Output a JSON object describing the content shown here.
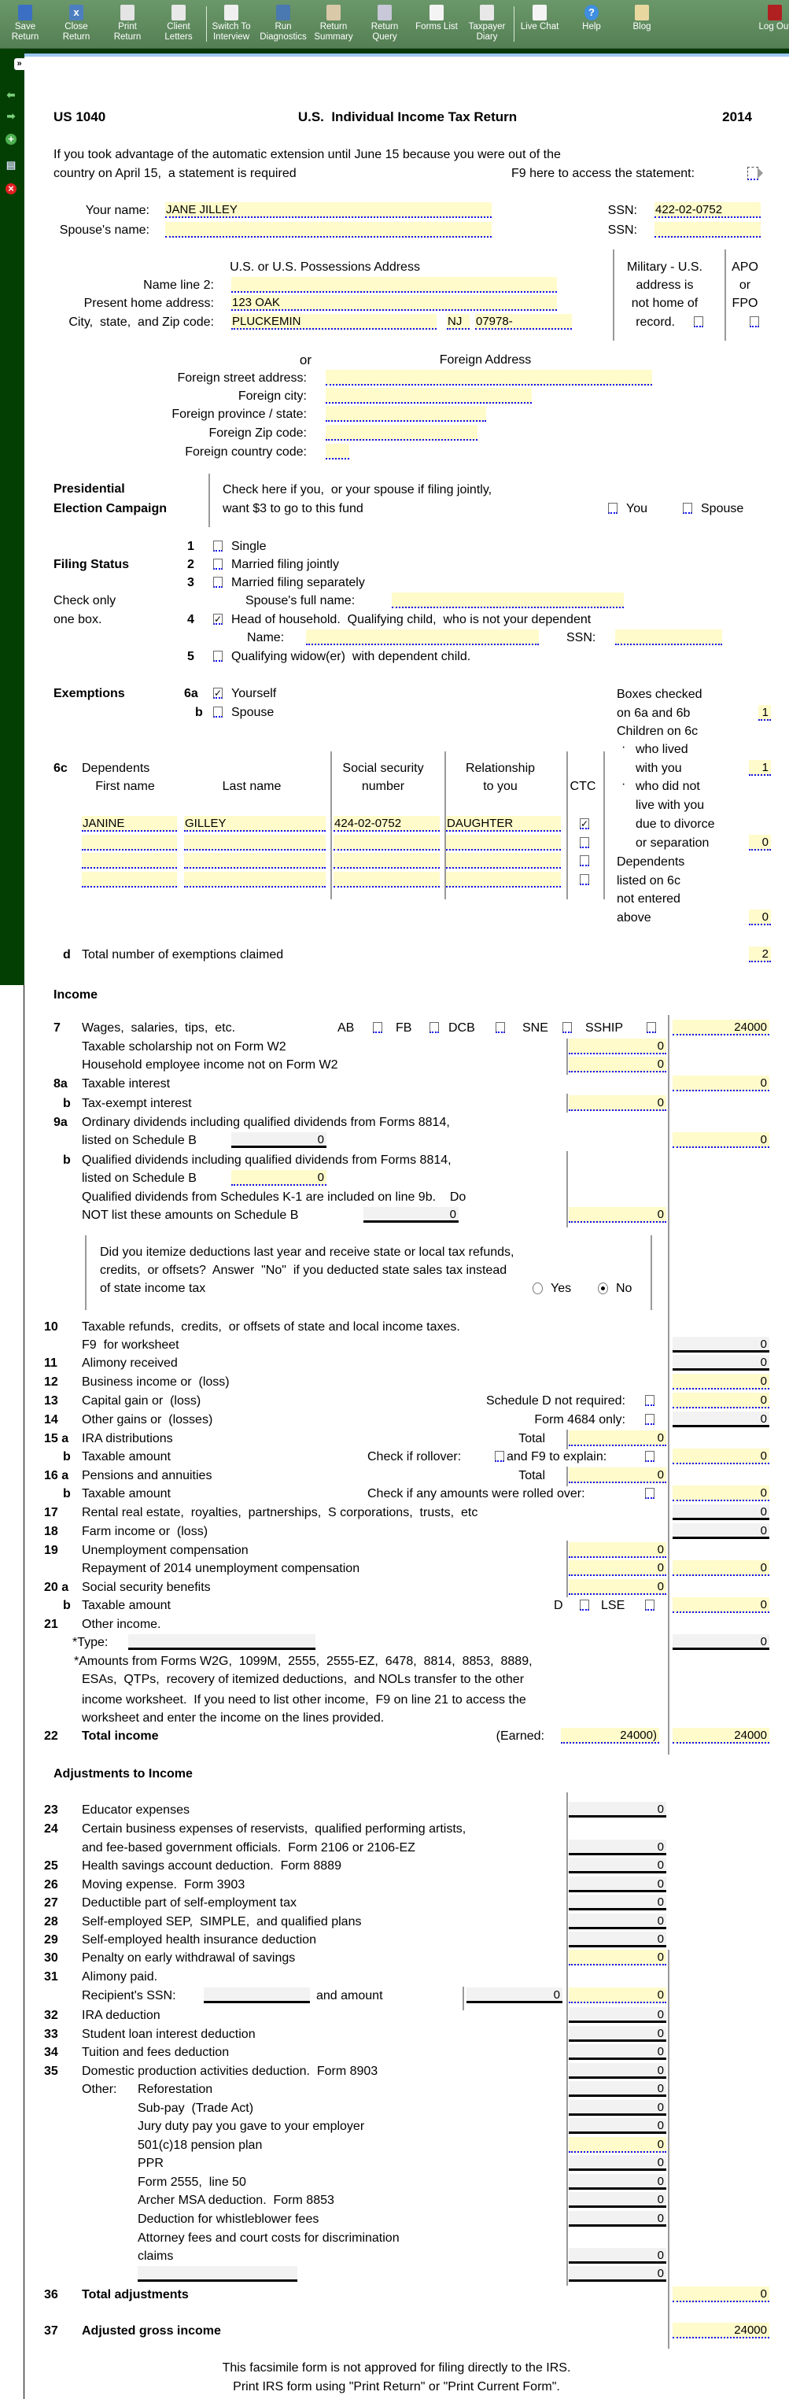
{
  "toolbar": {
    "items": [
      {
        "l1": "Save",
        "l2": "Return",
        "icon": "save-icon",
        "color": "#3a6fc4"
      },
      {
        "l1": "Close",
        "l2": "Return",
        "icon": "close-return-icon",
        "color": "#4d7fc0"
      },
      {
        "l1": "Print",
        "l2": "Return",
        "icon": "printer-icon",
        "color": "#e4e4e4"
      },
      {
        "l1": "Client",
        "l2": "Letters",
        "icon": "envelope-icon",
        "color": "#e8e8e8"
      },
      {
        "l1": "Switch To",
        "l2": "Interview",
        "icon": "switch-icon",
        "color": "#f0f0f0"
      },
      {
        "l1": "Run",
        "l2": "Diagnostics",
        "icon": "diagnostics-icon",
        "color": "#4a78b0"
      },
      {
        "l1": "Return",
        "l2": "Summary",
        "icon": "clipboard-icon",
        "color": "#d9c9a8"
      },
      {
        "l1": "Return",
        "l2": "Query",
        "icon": "clock-icon",
        "color": "#c8c8d8"
      },
      {
        "l1": "Forms List",
        "l2": "",
        "icon": "forms-list-icon",
        "color": "#f4f4f4"
      },
      {
        "l1": "Taxpayer",
        "l2": "Diary",
        "icon": "diary-icon",
        "color": "#e8e8e8"
      },
      {
        "l1": "Live Chat",
        "l2": "",
        "icon": "chat-icon",
        "color": "#f4f4f4"
      },
      {
        "l1": "Help",
        "l2": "",
        "icon": "help-icon",
        "color": "#3f8ee0"
      },
      {
        "l1": "Blog",
        "l2": "",
        "icon": "scroll-icon",
        "color": "#e8d8a0"
      },
      {
        "l1": "Log Out",
        "l2": "",
        "icon": "log-out-icon",
        "color": "#b02020"
      }
    ]
  },
  "sidebar": {
    "expand": "»"
  },
  "header": {
    "form": "US 1040",
    "title": "U.S.  Individual Income Tax Return",
    "year": "2014"
  },
  "extension": {
    "line1": "If you took advantage of the automatic extension until June 15 because you were out of the",
    "line2": "country on April 15,  a statement is required",
    "f9": "F9 here to access the statement:"
  },
  "taxpayer": {
    "your_name_label": "Your name:",
    "your_name": "JANE JILLEY",
    "ssn_label": "SSN:",
    "ssn": "422-02-0752",
    "spouse_name_label": "Spouse's name:",
    "spouse_name": "",
    "spouse_ssn_label": "SSN:",
    "spouse_ssn": ""
  },
  "address": {
    "heading": "U.S. or U.S. Possessions Address",
    "name2_label": "Name line 2:",
    "name2": "",
    "home_label": "Present home address:",
    "home": "123 OAK",
    "city_label": "City,  state,  and Zip code:",
    "city": "PLUCKEMIN",
    "state": "NJ",
    "zip": "07978-",
    "military": [
      "Military - U.S.",
      "address is",
      "not home of",
      "record."
    ],
    "military_checked": false,
    "apo": [
      "APO",
      "or",
      "FPO"
    ],
    "apo_checked": false
  },
  "foreign": {
    "or": "or",
    "heading": "Foreign Address",
    "fields": [
      {
        "label": "Foreign street address:",
        "value": ""
      },
      {
        "label": "Foreign city:",
        "value": ""
      },
      {
        "label": "Foreign province / state:",
        "value": ""
      },
      {
        "label": "Foreign Zip code:",
        "value": ""
      },
      {
        "label": "Foreign country code:",
        "value": ""
      }
    ]
  },
  "presidential": {
    "title1": "Presidential",
    "title2": "Election Campaign",
    "text1": "Check here if you,  or your spouse if filing jointly,",
    "text2": "want $3 to go to this fund",
    "you": "You",
    "spouse": "Spouse",
    "you_checked": false,
    "spouse_checked": false
  },
  "filing": {
    "title": "Filing Status",
    "note1": "Check only",
    "note2": "one box.",
    "options": [
      {
        "num": "1",
        "label": "Single",
        "checked": false
      },
      {
        "num": "2",
        "label": "Married filing jointly",
        "checked": false
      },
      {
        "num": "3",
        "label": "Married filing separately",
        "checked": false
      },
      {
        "num": "4",
        "label": "Head of household.  Qualifying child,  who is not your dependent",
        "checked": true
      },
      {
        "num": "5",
        "label": "Qualifying widow(er)  with dependent child.",
        "checked": false
      }
    ],
    "spouse_full_name_label": "Spouse's full name:",
    "spouse_full_name": "",
    "qc_name_label": "Name:",
    "qc_name": "",
    "qc_ssn_label": "SSN:",
    "qc_ssn": ""
  },
  "exemptions": {
    "title": "Exemptions",
    "yourself_num": "6a",
    "yourself": "Yourself",
    "yourself_checked": true,
    "spouse_num": "b",
    "spouse": "Spouse",
    "spouse_checked": false,
    "summary": [
      "Boxes checked",
      "on 6a and 6b",
      "Children on 6c",
      "who lived",
      "with you",
      "who did not",
      "live with you",
      "due to divorce",
      "or separation",
      "Dependents",
      "listed on 6c",
      "not entered",
      "above"
    ],
    "bullet": "·",
    "boxes_checked": "1",
    "lived_with": "1",
    "not_lived_with": "0",
    "other_dependents": "0",
    "dependents_num": "6c",
    "dependents_label": "Dependents",
    "columns": {
      "first": "First name",
      "last": "Last name",
      "ssn1": "Social security",
      "ssn2": "number",
      "rel1": "Relationship",
      "rel2": "to you",
      "ctc": "CTC"
    },
    "dependents": [
      {
        "first": "JANINE",
        "last": "GILLEY",
        "ssn": "424-02-0752",
        "relationship": "DAUGHTER",
        "ctc": true
      },
      {
        "first": "",
        "last": "",
        "ssn": "",
        "relationship": "",
        "ctc": false
      },
      {
        "first": "",
        "last": "",
        "ssn": "",
        "relationship": "",
        "ctc": false
      },
      {
        "first": "",
        "last": "",
        "ssn": "",
        "relationship": "",
        "ctc": false
      }
    ],
    "total_num": "d",
    "total_label": "Total number of exemptions claimed",
    "total": "2"
  },
  "income": {
    "title": "Income",
    "l7": {
      "num": "7",
      "label": "Wages,  salaries,  tips,  etc.",
      "flags": [
        "AB",
        "FB",
        "DCB",
        "SNE",
        "SSHIP"
      ],
      "value": "24000"
    },
    "scholarship": {
      "label": "Taxable scholarship not on Form W2",
      "value": "0"
    },
    "household": {
      "label": "Household employee income not on Form W2",
      "value": "0"
    },
    "l8a": {
      "num": "8a",
      "label": "Taxable interest",
      "value": "0"
    },
    "l8b": {
      "num": "b",
      "label": "Tax-exempt interest",
      "value": "0"
    },
    "l9a": {
      "num": "9a",
      "label": "Ordinary dividends including qualified dividends from Forms 8814,",
      "label2": "listed on Schedule B",
      "sched_b": "0",
      "value": "0"
    },
    "l9b": {
      "num": "b",
      "label": "Qualified dividends including qualified dividends from Forms 8814,",
      "label2": "listed on Schedule B",
      "sched_b": "0",
      "label3": "Qualified dividends from Schedules K-1 are included on line 9b.    Do",
      "label4": "NOT list these amounts on Schedule B",
      "k1": "0",
      "value": "0"
    },
    "question": {
      "line1": "Did you itemize deductions last year and receive state or local tax refunds,",
      "line2": "credits,  or offsets?  Answer  \"No\"  if you deducted state sales tax instead",
      "line3": "of state income tax",
      "yes": "Yes",
      "no": "No",
      "answer": "No"
    },
    "l10": {
      "num": "10",
      "label": "Taxable refunds,  credits,  or offsets of state and local income taxes.",
      "label2": "F9  for worksheet",
      "value": "0"
    },
    "l11": {
      "num": "11",
      "label": "Alimony received",
      "value": "0"
    },
    "l12": {
      "num": "12",
      "label": "Business income or  (loss)",
      "value": "0"
    },
    "l13": {
      "num": "13",
      "label": "Capital gain or  (loss)",
      "note": "Schedule D not required:",
      "value": "0"
    },
    "l14": {
      "num": "14",
      "label": "Other gains or  (losses)",
      "note": "Form 4684 only:",
      "value": "0"
    },
    "l15a": {
      "num": "15 a",
      "label": "IRA distributions",
      "note": "Total",
      "value": "0"
    },
    "l15b": {
      "num": "b",
      "label": "Taxable amount",
      "note": "Check if rollover:",
      "note2": "and F9 to explain:",
      "value": "0"
    },
    "l16a": {
      "num": "16 a",
      "label": "Pensions and annuities",
      "note": "Total",
      "value": "0"
    },
    "l16b": {
      "num": "b",
      "label": "Taxable amount",
      "note": "Check if any amounts were rolled over:",
      "value": "0"
    },
    "l17": {
      "num": "17",
      "label": "Rental real estate,  royalties,  partnerships,  S corporations,  trusts,  etc",
      "value": "0"
    },
    "l18": {
      "num": "18",
      "label": "Farm income or  (loss)",
      "value": "0"
    },
    "l19": {
      "num": "19",
      "label": "Unemployment compensation",
      "value": "0",
      "label2": "Repayment of 2014 unemployment compensation",
      "repayment": "0",
      "net": "0"
    },
    "l20a": {
      "num": "20 a",
      "label": "Social security benefits",
      "value": "0"
    },
    "l20b": {
      "num": "b",
      "label": "Taxable amount",
      "d": "D",
      "lse": "LSE",
      "value": "0"
    },
    "l21": {
      "num": "21",
      "label": "Other income.",
      "type_label": "*Type:",
      "type": "",
      "value": "0"
    },
    "notes": [
      "*Amounts from Forms W2G,  1099M,  2555,  2555-EZ,  6478,  8814,  8853,  8889,",
      "ESAs,  QTPs,  recovery of itemized deductions,  and NOLs transfer to the other",
      "income worksheet.  If you need to list other income,  F9 on line 21 to access the",
      "worksheet and enter the income on the lines provided."
    ],
    "l22": {
      "num": "22",
      "label": "Total income",
      "earned_label": "(Earned:",
      "earned": "24000)",
      "value": "24000"
    }
  },
  "adjustments": {
    "title": "Adjustments to Income",
    "lines": [
      {
        "num": "23",
        "label": "Educator expenses",
        "value": "0"
      },
      {
        "num": "24",
        "label": "Certain business expenses of reservists,  qualified performing artists,",
        "label2": "and fee-based government officials.  Form 2106 or 2106-EZ",
        "value": "0"
      },
      {
        "num": "25",
        "label": "Health savings account deduction.  Form 8889",
        "value": "0"
      },
      {
        "num": "26",
        "label": "Moving expense.  Form 3903",
        "value": "0"
      },
      {
        "num": "27",
        "label": "Deductible part of self-employment tax",
        "value": "0"
      },
      {
        "num": "28",
        "label": "Self-employed SEP,  SIMPLE,  and qualified plans",
        "value": "0"
      },
      {
        "num": "29",
        "label": "Self-employed health insurance deduction",
        "value": "0"
      },
      {
        "num": "30",
        "label": "Penalty on early withdrawal of savings",
        "value": "0"
      },
      {
        "num": "31",
        "label": "Alimony paid.",
        "label2": "Recipient's SSN:",
        "ssn": "",
        "and_amount": "and amount",
        "amount": "0",
        "value": "0"
      },
      {
        "num": "32",
        "label": "IRA deduction",
        "value": "0"
      },
      {
        "num": "33",
        "label": "Student loan interest deduction",
        "value": "0"
      },
      {
        "num": "34",
        "label": "Tuition and fees deduction",
        "value": "0"
      },
      {
        "num": "35",
        "label": "Domestic production activities deduction.  Form 8903",
        "value": "0"
      }
    ],
    "other_label": "Other:",
    "other": [
      {
        "label": "Reforestation",
        "value": "0"
      },
      {
        "label": "Sub-pay  (Trade Act)",
        "value": "0"
      },
      {
        "label": "Jury duty pay you gave to your employer",
        "value": "0"
      },
      {
        "label": "501(c)18 pension plan",
        "value": "0"
      },
      {
        "label": "PPR",
        "value": "0"
      },
      {
        "label": "Form 2555,  line 50",
        "value": "0"
      },
      {
        "label": "Archer MSA deduction.  Form 8853",
        "value": "0"
      },
      {
        "label": "Deduction for whistleblower fees",
        "value": "0"
      },
      {
        "label": "Attorney fees and court costs for discrimination",
        "label2": "claims",
        "value": "0"
      },
      {
        "label": "",
        "value": "0"
      }
    ],
    "l36": {
      "num": "36",
      "label": "Total adjustments",
      "value": "0"
    },
    "l37": {
      "num": "37",
      "label": "Adjusted gross income",
      "value": "24000"
    }
  },
  "footer": {
    "line1": "This facsimile form is not approved for filing directly to the IRS.",
    "line2": "Print IRS form using \"Print Return\" or \"Print Current Form\"."
  }
}
